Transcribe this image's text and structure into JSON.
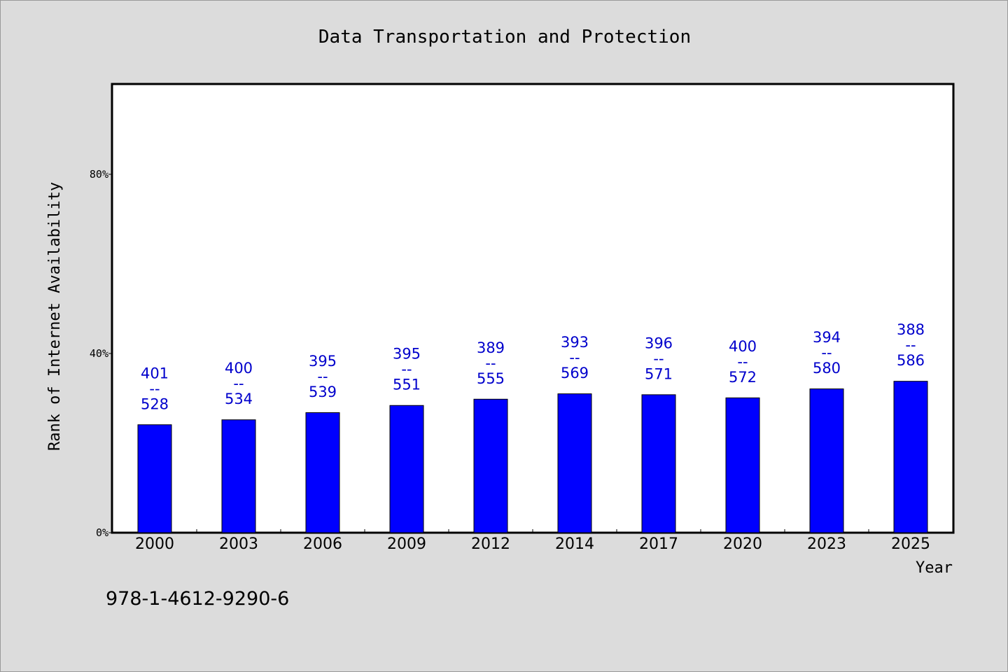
{
  "chart_data": {
    "type": "bar",
    "title": "Data Transportation and Protection",
    "xlabel": "Year",
    "ylabel": "Rank of Internet Availability",
    "categories": [
      "2000",
      "2003",
      "2006",
      "2009",
      "2012",
      "2014",
      "2017",
      "2020",
      "2023",
      "2025"
    ],
    "series": [
      {
        "values": [
          24.1,
          25.2,
          26.8,
          28.4,
          29.8,
          31.0,
          30.8,
          30.1,
          32.1,
          33.8
        ],
        "color": "#0000ff",
        "labels": [
          [
            "401",
            "--",
            "528"
          ],
          [
            "400",
            "--",
            "534"
          ],
          [
            "395",
            "--",
            "539"
          ],
          [
            "395",
            "--",
            "551"
          ],
          [
            "389",
            "--",
            "555"
          ],
          [
            "393",
            "--",
            "569"
          ],
          [
            "396",
            "--",
            "571"
          ],
          [
            "400",
            "--",
            "572"
          ],
          [
            "394",
            "--",
            "580"
          ],
          [
            "388",
            "--",
            "586"
          ]
        ]
      }
    ],
    "ylim": [
      0,
      100
    ],
    "yticks": [
      0,
      40,
      80
    ],
    "ytick_labels": [
      "0%",
      "40%",
      "80%"
    ],
    "grid": false,
    "legend": "none",
    "label_color": "#0000cc",
    "background": "#dcdcdc",
    "plot_background": "#ffffff"
  },
  "footer_text": "978-1-4612-9290-6"
}
